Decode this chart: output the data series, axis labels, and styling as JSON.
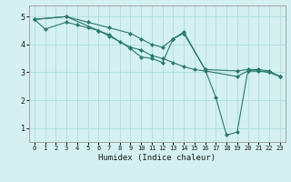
{
  "background_color": "#d4f0f0",
  "grid_color": "#b0dede",
  "line_color": "#2a7a6a",
  "xlabel": "Humidex (Indice chaleur)",
  "ylim": [
    0.5,
    5.4
  ],
  "xlim": [
    -0.5,
    23.5
  ],
  "yticks": [
    1,
    2,
    3,
    4,
    5
  ],
  "xticks": [
    0,
    1,
    2,
    3,
    4,
    5,
    6,
    7,
    8,
    9,
    10,
    11,
    12,
    13,
    14,
    15,
    16,
    17,
    18,
    19,
    20,
    21,
    22,
    23
  ],
  "series": [
    {
      "x": [
        0,
        3,
        5,
        7,
        9,
        10,
        11,
        12,
        13,
        14,
        16,
        19,
        20,
        21,
        22,
        23
      ],
      "y": [
        4.9,
        5.0,
        4.8,
        4.6,
        4.4,
        4.2,
        4.0,
        3.9,
        4.2,
        4.4,
        3.1,
        3.05,
        3.1,
        3.1,
        3.05,
        2.85
      ]
    },
    {
      "x": [
        0,
        1,
        3,
        4,
        5,
        6,
        7,
        8,
        9,
        10,
        11,
        12,
        13,
        14,
        15,
        16,
        19,
        20,
        21,
        22,
        23
      ],
      "y": [
        4.9,
        4.55,
        4.8,
        4.7,
        4.6,
        4.5,
        4.3,
        4.1,
        3.9,
        3.8,
        3.6,
        3.5,
        3.35,
        3.2,
        3.1,
        3.05,
        2.85,
        3.05,
        3.05,
        3.0,
        2.85
      ]
    },
    {
      "x": [
        0,
        3,
        6,
        7,
        9,
        10,
        11,
        12,
        13,
        14,
        16,
        17,
        18,
        19,
        20,
        21,
        22,
        23
      ],
      "y": [
        4.9,
        5.0,
        4.5,
        4.35,
        3.85,
        3.55,
        3.5,
        3.35,
        4.2,
        4.45,
        3.1,
        2.1,
        0.75,
        0.85,
        3.05,
        3.05,
        3.0,
        2.85
      ]
    }
  ]
}
